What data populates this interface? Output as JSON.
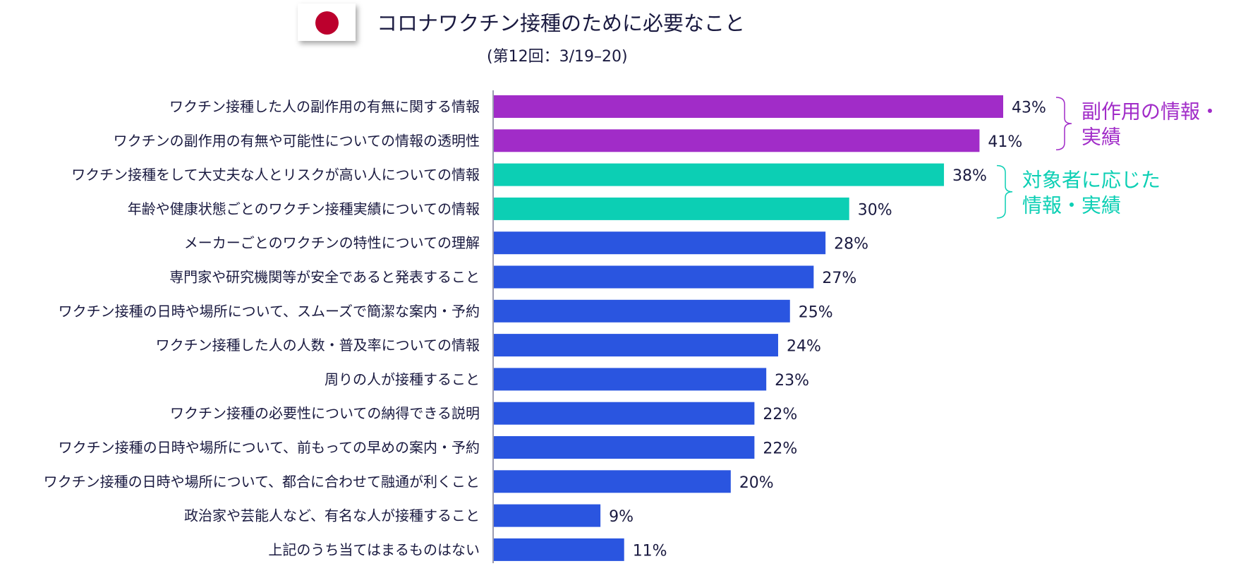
{
  "header": {
    "title": "コロナワクチン接種のために必要なこと",
    "subtitle": "(第12回：3/19–20)",
    "flag_icon": "japan-flag-icon",
    "flag_color": "#bc002d"
  },
  "colors": {
    "purple": "#a12cc8",
    "teal": "#0ccfb4",
    "blue": "#2a55e0",
    "axis": "#9a9ab0"
  },
  "chart_data": {
    "type": "bar",
    "orientation": "horizontal",
    "title": "コロナワクチン接種のために必要なこと",
    "subtitle": "(第12回：3/19–20)",
    "xlim": [
      0,
      43
    ],
    "grid": false,
    "categories": [
      "ワクチン接種した人の副作用の有無に関する情報",
      "ワクチンの副作用の有無や可能性についての情報の透明性",
      "ワクチン接種をして大丈夫な人とリスクが高い人についての情報",
      "年齢や健康状態ごとのワクチン接種実績についての情報",
      "メーカーごとのワクチンの特性についての理解",
      "専門家や研究機関等が安全であると発表すること",
      "ワクチン接種の日時や場所について、スムーズで簡潔な案内・予約",
      "ワクチン接種した人の人数・普及率についての情報",
      "周りの人が接種すること",
      "ワクチン接種の必要性についての納得できる説明",
      "ワクチン接種の日時や場所について、前もっての早めの案内・予約",
      "ワクチン接種の日時や場所について、都合に合わせて融通が利くこと",
      "政治家や芸能人など、有名な人が接種すること",
      "上記のうち当てはまるものはない"
    ],
    "values": [
      43,
      41,
      38,
      30,
      28,
      27,
      25,
      24,
      23,
      22,
      22,
      20,
      9,
      11
    ],
    "value_labels": [
      "43%",
      "41%",
      "38%",
      "30%",
      "28%",
      "27%",
      "25%",
      "24%",
      "23%",
      "22%",
      "22%",
      "20%",
      "9%",
      "11%"
    ],
    "bar_groups": [
      "purple",
      "purple",
      "teal",
      "teal",
      "blue",
      "blue",
      "blue",
      "blue",
      "blue",
      "blue",
      "blue",
      "blue",
      "blue",
      "blue"
    ],
    "annotations": [
      {
        "lines": [
          "副作用の情報・",
          "実績"
        ],
        "color": "#a12cc8",
        "bars": [
          0,
          1
        ]
      },
      {
        "lines": [
          "対象者に応じた",
          "情報・実績"
        ],
        "color": "#0ccfb4",
        "bars": [
          2,
          3
        ]
      }
    ]
  }
}
